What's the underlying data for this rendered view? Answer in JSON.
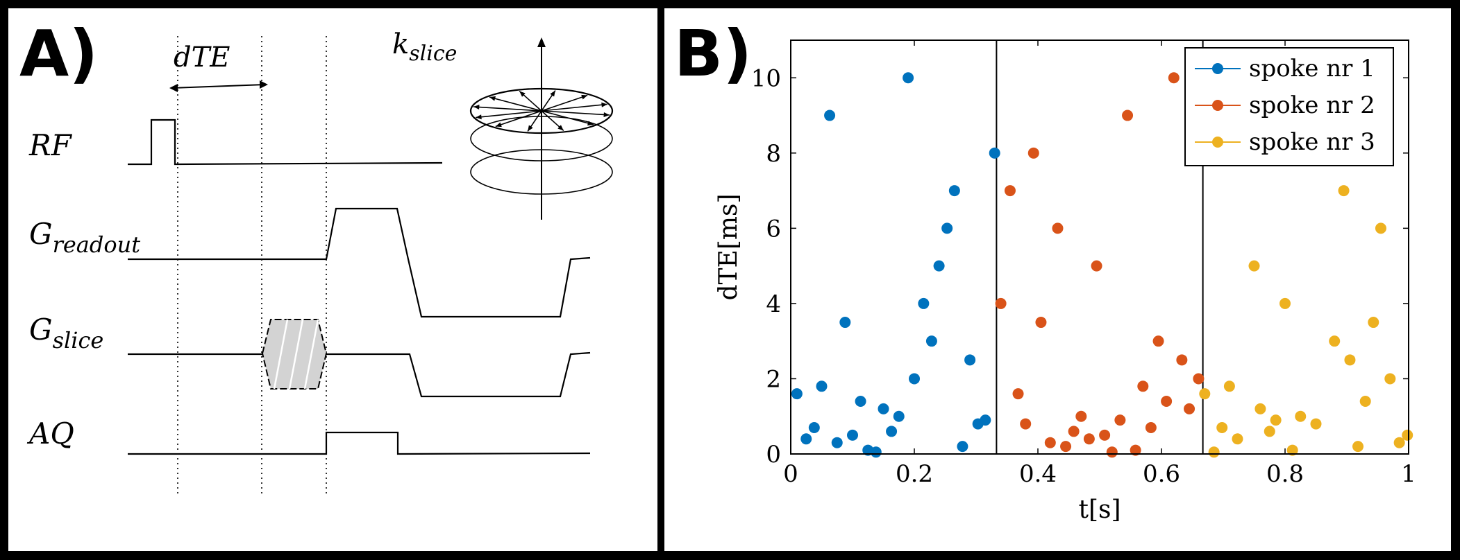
{
  "panel_a": {
    "label": "A)",
    "dte_label": "dTE",
    "kslice_label_main": "k",
    "kslice_label_sub": "slice",
    "rows": [
      {
        "main": "RF",
        "sub": ""
      },
      {
        "main": "G",
        "sub": "readout"
      },
      {
        "main": "G",
        "sub": "slice"
      },
      {
        "main": "AQ",
        "sub": ""
      }
    ]
  },
  "panel_b": {
    "label": "B)"
  },
  "chart_data": {
    "type": "scatter",
    "title": "",
    "xlabel": "t[s]",
    "ylabel": "dTE[ms]",
    "xlim": [
      0,
      1
    ],
    "ylim": [
      0,
      11
    ],
    "xticks": [
      "0",
      "0.2",
      "0.4",
      "0.6",
      "0.8",
      "1"
    ],
    "yticks": [
      "0",
      "2",
      "4",
      "6",
      "8",
      "10"
    ],
    "vlines": [
      0.333,
      0.667,
      1.0
    ],
    "grid": false,
    "legend_position": "top-right",
    "series": [
      {
        "name": "spoke nr 1",
        "color": "#0072BD",
        "points": [
          [
            0.01,
            1.6
          ],
          [
            0.025,
            0.4
          ],
          [
            0.038,
            0.7
          ],
          [
            0.05,
            1.8
          ],
          [
            0.063,
            9.0
          ],
          [
            0.075,
            0.3
          ],
          [
            0.088,
            3.5
          ],
          [
            0.1,
            0.5
          ],
          [
            0.113,
            1.4
          ],
          [
            0.125,
            0.1
          ],
          [
            0.138,
            0.05
          ],
          [
            0.15,
            1.2
          ],
          [
            0.163,
            0.6
          ],
          [
            0.175,
            1.0
          ],
          [
            0.19,
            10.0
          ],
          [
            0.2,
            2.0
          ],
          [
            0.215,
            4.0
          ],
          [
            0.228,
            3.0
          ],
          [
            0.24,
            5.0
          ],
          [
            0.253,
            6.0
          ],
          [
            0.265,
            7.0
          ],
          [
            0.278,
            0.2
          ],
          [
            0.29,
            2.5
          ],
          [
            0.303,
            0.8
          ],
          [
            0.315,
            0.9
          ],
          [
            0.33,
            8.0
          ]
        ]
      },
      {
        "name": "spoke nr 2",
        "color": "#D95319",
        "points": [
          [
            0.34,
            4.0
          ],
          [
            0.355,
            7.0
          ],
          [
            0.368,
            1.6
          ],
          [
            0.38,
            0.8
          ],
          [
            0.393,
            8.0
          ],
          [
            0.405,
            3.5
          ],
          [
            0.42,
            0.3
          ],
          [
            0.432,
            6.0
          ],
          [
            0.445,
            0.2
          ],
          [
            0.458,
            0.6
          ],
          [
            0.47,
            1.0
          ],
          [
            0.483,
            0.4
          ],
          [
            0.495,
            5.0
          ],
          [
            0.508,
            0.5
          ],
          [
            0.52,
            0.05
          ],
          [
            0.533,
            0.9
          ],
          [
            0.545,
            9.0
          ],
          [
            0.558,
            0.1
          ],
          [
            0.57,
            1.8
          ],
          [
            0.583,
            0.7
          ],
          [
            0.595,
            3.0
          ],
          [
            0.608,
            1.4
          ],
          [
            0.62,
            10.0
          ],
          [
            0.633,
            2.5
          ],
          [
            0.645,
            1.2
          ],
          [
            0.66,
            2.0
          ]
        ]
      },
      {
        "name": "spoke nr 3",
        "color": "#EDB120",
        "points": [
          [
            0.67,
            1.6
          ],
          [
            0.685,
            0.05
          ],
          [
            0.698,
            0.7
          ],
          [
            0.71,
            1.8
          ],
          [
            0.723,
            0.4
          ],
          [
            0.75,
            5.0
          ],
          [
            0.76,
            1.2
          ],
          [
            0.775,
            0.6
          ],
          [
            0.785,
            0.9
          ],
          [
            0.8,
            4.0
          ],
          [
            0.812,
            0.1
          ],
          [
            0.825,
            1.0
          ],
          [
            0.85,
            0.8
          ],
          [
            0.88,
            3.0
          ],
          [
            0.895,
            7.0
          ],
          [
            0.905,
            2.5
          ],
          [
            0.918,
            0.2
          ],
          [
            0.93,
            1.4
          ],
          [
            0.943,
            3.5
          ],
          [
            0.955,
            6.0
          ],
          [
            0.97,
            2.0
          ],
          [
            0.985,
            0.3
          ],
          [
            0.998,
            0.5
          ]
        ]
      }
    ]
  }
}
